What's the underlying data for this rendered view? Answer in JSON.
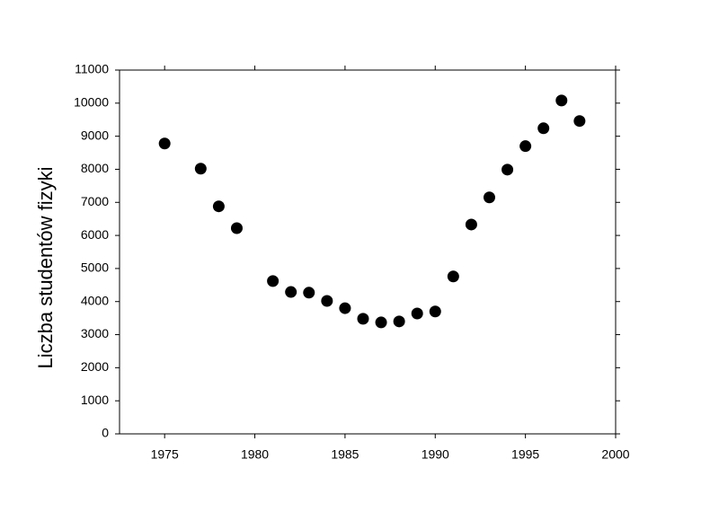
{
  "chart_data": {
    "type": "scatter",
    "y_label": "Liczba studentów fizyki",
    "x": [
      1975,
      1977,
      1978,
      1979,
      1981,
      1982,
      1983,
      1984,
      1985,
      1986,
      1987,
      1988,
      1989,
      1990,
      1991,
      1992,
      1993,
      1994,
      1995,
      1996,
      1997,
      1998
    ],
    "values": [
      8780,
      8020,
      6880,
      6220,
      4620,
      4290,
      4270,
      4020,
      3800,
      3480,
      3370,
      3400,
      3640,
      3700,
      4760,
      6330,
      7150,
      7990,
      8700,
      9240,
      10080,
      9460
    ],
    "color": "#000000",
    "xlim": [
      1972.5,
      2000
    ],
    "xticks": [
      1975,
      1980,
      1985,
      1990,
      1995,
      2000
    ],
    "ylim": [
      0,
      11000
    ],
    "yticks": [
      0,
      1000,
      2000,
      3000,
      4000,
      5000,
      6000,
      7000,
      8000,
      9000,
      10000,
      11000
    ]
  }
}
